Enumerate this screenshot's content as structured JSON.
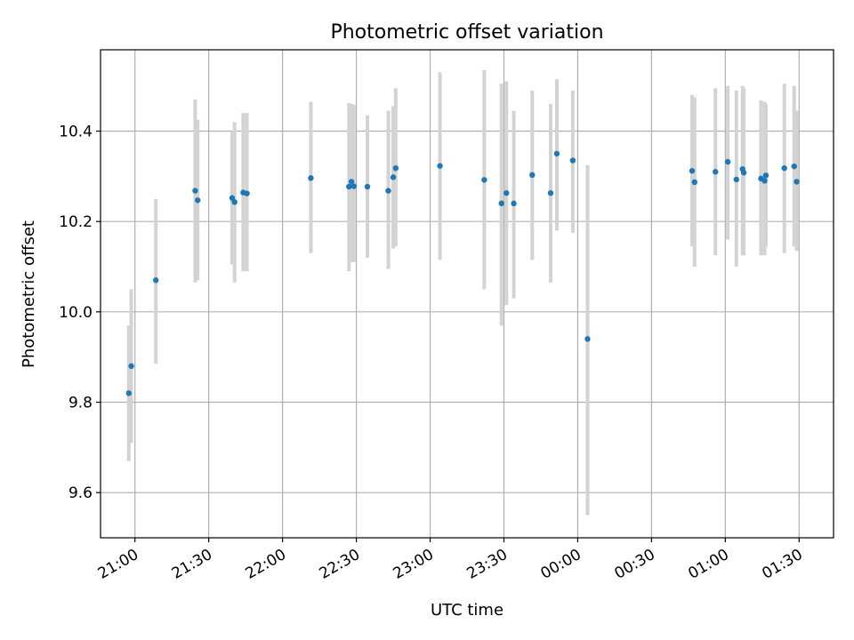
{
  "chart_data": {
    "type": "scatter",
    "title": "Photometric offset variation",
    "xlabel": "UTC time",
    "ylabel": "Photometric offset",
    "xlim": [
      "2023-01-01T20:46:00",
      "2023-01-02T01:44:00"
    ],
    "ylim": [
      9.5,
      10.58
    ],
    "grid": true,
    "x_ticks": [
      "21:00",
      "21:30",
      "22:00",
      "22:30",
      "23:00",
      "23:30",
      "00:00",
      "00:30",
      "01:00",
      "01:30"
    ],
    "y_ticks": [
      "9.6",
      "9.8",
      "10.0",
      "10.2",
      "10.4"
    ],
    "colors": {
      "points": "#1f77b4",
      "errorbars": "#d3d3d3",
      "grid": "#b0b0b0"
    },
    "series": [
      {
        "points": [
          {
            "x": "2023-01-01T20:57:30",
            "y": 9.82,
            "ylow": 9.67,
            "yhigh": 9.97
          },
          {
            "x": "2023-01-01T20:58:30",
            "y": 9.88,
            "ylow": 9.71,
            "yhigh": 10.05
          },
          {
            "x": "2023-01-01T21:08:30",
            "y": 10.07,
            "ylow": 9.885,
            "yhigh": 10.25
          },
          {
            "x": "2023-01-01T21:24:30",
            "y": 10.268,
            "ylow": 10.065,
            "yhigh": 10.47
          },
          {
            "x": "2023-01-01T21:25:30",
            "y": 10.247,
            "ylow": 10.07,
            "yhigh": 10.425
          },
          {
            "x": "2023-01-01T21:39:30",
            "y": 10.252,
            "ylow": 10.105,
            "yhigh": 10.4
          },
          {
            "x": "2023-01-01T21:40:30",
            "y": 10.243,
            "ylow": 10.065,
            "yhigh": 10.42
          },
          {
            "x": "2023-01-01T21:44:00",
            "y": 10.264,
            "ylow": 10.09,
            "yhigh": 10.44
          },
          {
            "x": "2023-01-01T21:45:30",
            "y": 10.262,
            "ylow": 10.09,
            "yhigh": 10.44
          },
          {
            "x": "2023-01-01T22:11:30",
            "y": 10.296,
            "ylow": 10.13,
            "yhigh": 10.465
          },
          {
            "x": "2023-01-01T22:27:00",
            "y": 10.277,
            "ylow": 10.09,
            "yhigh": 10.462
          },
          {
            "x": "2023-01-01T22:28:00",
            "y": 10.288,
            "ylow": 10.11,
            "yhigh": 10.46
          },
          {
            "x": "2023-01-01T22:29:00",
            "y": 10.278,
            "ylow": 10.11,
            "yhigh": 10.458
          },
          {
            "x": "2023-01-01T22:34:30",
            "y": 10.277,
            "ylow": 10.12,
            "yhigh": 10.435
          },
          {
            "x": "2023-01-01T22:43:00",
            "y": 10.268,
            "ylow": 10.095,
            "yhigh": 10.445
          },
          {
            "x": "2023-01-01T22:45:00",
            "y": 10.298,
            "ylow": 10.14,
            "yhigh": 10.455
          },
          {
            "x": "2023-01-01T22:46:00",
            "y": 10.318,
            "ylow": 10.145,
            "yhigh": 10.495
          },
          {
            "x": "2023-01-01T23:04:00",
            "y": 10.323,
            "ylow": 10.115,
            "yhigh": 10.53
          },
          {
            "x": "2023-01-01T23:22:00",
            "y": 10.292,
            "ylow": 10.05,
            "yhigh": 10.535
          },
          {
            "x": "2023-01-01T23:29:00",
            "y": 10.24,
            "ylow": 9.97,
            "yhigh": 10.505
          },
          {
            "x": "2023-01-01T23:31:00",
            "y": 10.263,
            "ylow": 10.015,
            "yhigh": 10.51
          },
          {
            "x": "2023-01-01T23:34:00",
            "y": 10.24,
            "ylow": 10.03,
            "yhigh": 10.445
          },
          {
            "x": "2023-01-01T23:41:30",
            "y": 10.303,
            "ylow": 10.115,
            "yhigh": 10.49
          },
          {
            "x": "2023-01-01T23:49:00",
            "y": 10.263,
            "ylow": 10.065,
            "yhigh": 10.46
          },
          {
            "x": "2023-01-01T23:51:30",
            "y": 10.35,
            "ylow": 10.18,
            "yhigh": 10.515
          },
          {
            "x": "2023-01-01T23:58:00",
            "y": 10.335,
            "ylow": 10.175,
            "yhigh": 10.49
          },
          {
            "x": "2023-01-02T00:04:00",
            "y": 9.94,
            "ylow": 9.55,
            "yhigh": 10.325
          },
          {
            "x": "2023-01-02T00:46:30",
            "y": 10.312,
            "ylow": 10.145,
            "yhigh": 10.48
          },
          {
            "x": "2023-01-02T00:47:30",
            "y": 10.287,
            "ylow": 10.1,
            "yhigh": 10.475
          },
          {
            "x": "2023-01-02T00:56:00",
            "y": 10.31,
            "ylow": 10.125,
            "yhigh": 10.495
          },
          {
            "x": "2023-01-02T01:01:00",
            "y": 10.332,
            "ylow": 10.16,
            "yhigh": 10.5
          },
          {
            "x": "2023-01-02T01:04:30",
            "y": 10.293,
            "ylow": 10.1,
            "yhigh": 10.49
          },
          {
            "x": "2023-01-02T01:07:00",
            "y": 10.316,
            "ylow": 10.125,
            "yhigh": 10.5
          },
          {
            "x": "2023-01-02T01:07:30",
            "y": 10.308,
            "ylow": 10.125,
            "yhigh": 10.495
          },
          {
            "x": "2023-01-02T01:14:30",
            "y": 10.295,
            "ylow": 10.125,
            "yhigh": 10.468
          },
          {
            "x": "2023-01-02T01:16:00",
            "y": 10.29,
            "ylow": 10.125,
            "yhigh": 10.465
          },
          {
            "x": "2023-01-02T01:16:30",
            "y": 10.302,
            "ylow": 10.145,
            "yhigh": 10.46
          },
          {
            "x": "2023-01-02T01:24:00",
            "y": 10.318,
            "ylow": 10.13,
            "yhigh": 10.505
          },
          {
            "x": "2023-01-02T01:28:00",
            "y": 10.322,
            "ylow": 10.145,
            "yhigh": 10.5
          },
          {
            "x": "2023-01-02T01:29:00",
            "y": 10.288,
            "ylow": 10.135,
            "yhigh": 10.445
          }
        ]
      }
    ]
  }
}
